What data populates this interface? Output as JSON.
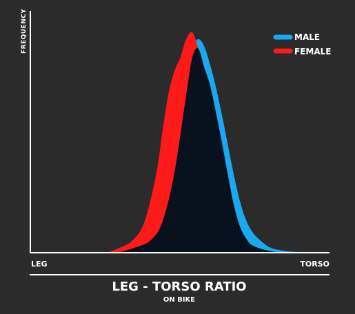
{
  "chart_data": {
    "type": "area",
    "title": "LEG - TORSO RATIO",
    "subtitle": "ON BIKE",
    "xlabel": "",
    "ylabel": "FREQUENCY",
    "x_tick_labels": {
      "left": "LEG",
      "right": "TORSO"
    },
    "xlim": [
      0,
      100
    ],
    "ylim": [
      0,
      100
    ],
    "grid": false,
    "legend_position": "top-right",
    "series": [
      {
        "name": "MALE",
        "color": "#1aa8ef",
        "x": [
          30,
          35,
          40,
          44,
          48,
          52,
          54,
          56,
          58,
          60,
          62,
          64,
          66,
          68,
          70,
          72,
          74,
          76,
          80,
          85,
          90
        ],
        "y": [
          0,
          2,
          8,
          22,
          48,
          76,
          88,
          92,
          89,
          81,
          71,
          59,
          46,
          33,
          22,
          14,
          9,
          6,
          2,
          0.5,
          0
        ]
      },
      {
        "name": "FEMALE",
        "color": "#ff1a1a",
        "x": [
          26,
          30,
          34,
          38,
          42,
          44,
          46,
          48,
          50,
          52,
          54,
          56,
          58,
          60,
          62,
          64,
          66,
          68,
          70,
          72,
          74,
          78,
          82
        ],
        "y": [
          0,
          2,
          5,
          13,
          34,
          52,
          68,
          78,
          84,
          92,
          95,
          88,
          76,
          63,
          50,
          35,
          22,
          12,
          6,
          3,
          1.5,
          0.5,
          0
        ]
      },
      {
        "name": "",
        "color": "#08121e",
        "x": [
          30,
          35,
          40,
          44,
          48,
          52,
          54,
          56,
          58,
          60,
          62,
          64,
          66,
          68,
          70,
          72,
          74,
          78,
          82
        ],
        "y": [
          0,
          2,
          5,
          13,
          34,
          68,
          84,
          88,
          80,
          72,
          60,
          47,
          33,
          20,
          11,
          6,
          3,
          1,
          0
        ]
      }
    ]
  },
  "legend": [
    {
      "label": "MALE",
      "color": "#1aa8ef"
    },
    {
      "label": "FEMALE",
      "color": "#ff1a1a"
    }
  ],
  "colors": {
    "background": "#2b2b2b",
    "axis": "#ffffff",
    "overlap": "#08121e"
  }
}
